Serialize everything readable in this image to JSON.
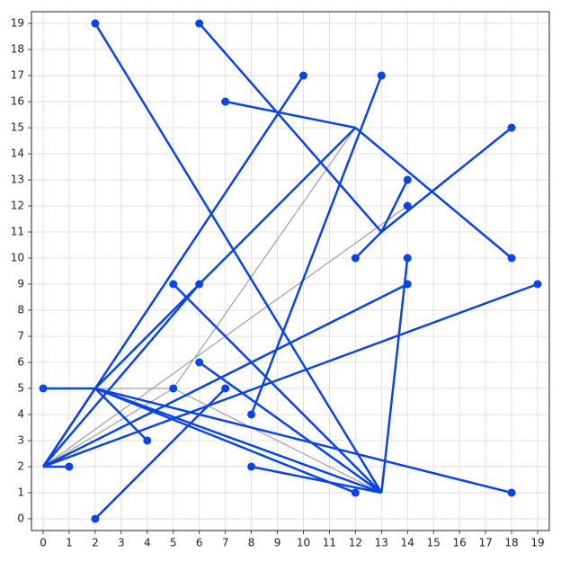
{
  "chart_data": {
    "type": "network",
    "xlim": [
      -0.45,
      19.45
    ],
    "ylim": [
      -0.45,
      19.45
    ],
    "xticks": [
      0,
      1,
      2,
      3,
      4,
      5,
      6,
      7,
      8,
      9,
      10,
      11,
      12,
      13,
      14,
      15,
      16,
      17,
      18,
      19
    ],
    "yticks": [
      0,
      1,
      2,
      3,
      4,
      5,
      6,
      7,
      8,
      9,
      10,
      11,
      12,
      13,
      14,
      15,
      16,
      17,
      18,
      19
    ],
    "grid": true,
    "series": [
      {
        "color": "#a0a0a0",
        "x": [
          2,
          5
        ],
        "y": [
          5,
          5
        ]
      },
      {
        "color": "#a0a0a0",
        "x": [
          0,
          5
        ],
        "y": [
          2,
          5
        ]
      },
      {
        "color": "#a0a0a0",
        "x": [
          5,
          12
        ],
        "y": [
          5,
          15
        ]
      },
      {
        "color": "#a0a0a0",
        "x": [
          5,
          13
        ],
        "y": [
          5,
          1
        ]
      },
      {
        "color": "#a0a0a0",
        "x": [
          0,
          14
        ],
        "y": [
          2,
          12
        ]
      },
      {
        "color": "#0a44e8",
        "x": [
          2,
          13
        ],
        "y": [
          19,
          1
        ]
      },
      {
        "color": "#0a44e8",
        "x": [
          6,
          13
        ],
        "y": [
          19,
          11
        ]
      },
      {
        "color": "#0a44e8",
        "x": [
          7,
          12
        ],
        "y": [
          16,
          15
        ]
      },
      {
        "color": "#0a44e8",
        "x": [
          12,
          18
        ],
        "y": [
          15,
          10
        ]
      },
      {
        "color": "#0a44e8",
        "x": [
          12,
          13
        ],
        "y": [
          10,
          11
        ]
      },
      {
        "color": "#0a44e8",
        "x": [
          13,
          18
        ],
        "y": [
          11,
          15
        ]
      },
      {
        "color": "#0a44e8",
        "x": [
          13,
          14
        ],
        "y": [
          11,
          13
        ]
      },
      {
        "color": "#0a44e8",
        "x": [
          13,
          8
        ],
        "y": [
          17,
          4
        ]
      },
      {
        "color": "#0a44e8",
        "x": [
          0,
          10
        ],
        "y": [
          2,
          17
        ]
      },
      {
        "color": "#0a44e8",
        "x": [
          2,
          12
        ],
        "y": [
          5,
          15
        ]
      },
      {
        "color": "#0a44e8",
        "x": [
          0,
          2
        ],
        "y": [
          5,
          5
        ]
      },
      {
        "color": "#0a44e8",
        "x": [
          2,
          13
        ],
        "y": [
          5,
          1
        ]
      },
      {
        "color": "#0a44e8",
        "x": [
          2,
          4
        ],
        "y": [
          5,
          3
        ]
      },
      {
        "color": "#0a44e8",
        "x": [
          2,
          7
        ],
        "y": [
          0,
          5
        ]
      },
      {
        "color": "#0a44e8",
        "x": [
          0,
          6
        ],
        "y": [
          2,
          9
        ]
      },
      {
        "color": "#0a44e8",
        "x": [
          6,
          13
        ],
        "y": [
          6,
          1
        ]
      },
      {
        "color": "#0a44e8",
        "x": [
          5,
          13
        ],
        "y": [
          9,
          1
        ]
      },
      {
        "color": "#0a44e8",
        "x": [
          0,
          1
        ],
        "y": [
          2,
          2
        ]
      },
      {
        "color": "#0a44e8",
        "x": [
          0,
          14
        ],
        "y": [
          2,
          9
        ]
      },
      {
        "color": "#0a44e8",
        "x": [
          0,
          19
        ],
        "y": [
          2,
          9
        ]
      },
      {
        "color": "#0a44e8",
        "x": [
          0,
          2
        ],
        "y": [
          2,
          5
        ]
      },
      {
        "color": "#0a44e8",
        "x": [
          14,
          13
        ],
        "y": [
          10,
          1
        ]
      },
      {
        "color": "#0a44e8",
        "x": [
          8,
          13
        ],
        "y": [
          2,
          1
        ]
      },
      {
        "color": "#0a44e8",
        "x": [
          2,
          18
        ],
        "y": [
          5,
          1
        ]
      },
      {
        "color": "#0a44e8",
        "x": [
          2,
          12
        ],
        "y": [
          5,
          1
        ]
      }
    ],
    "points": {
      "color": "#0a44e8",
      "x": [
        2,
        6,
        10,
        13,
        7,
        18,
        14,
        14,
        12,
        18,
        14,
        5,
        6,
        14,
        19,
        6,
        0,
        5,
        7,
        8,
        4,
        1,
        8,
        12,
        18,
        2
      ],
      "y": [
        19,
        19,
        17,
        17,
        16,
        15,
        13,
        12,
        10,
        10,
        10,
        9,
        9,
        9,
        9,
        6,
        5,
        5,
        5,
        4,
        3,
        2,
        2,
        1,
        1,
        0
      ]
    }
  }
}
